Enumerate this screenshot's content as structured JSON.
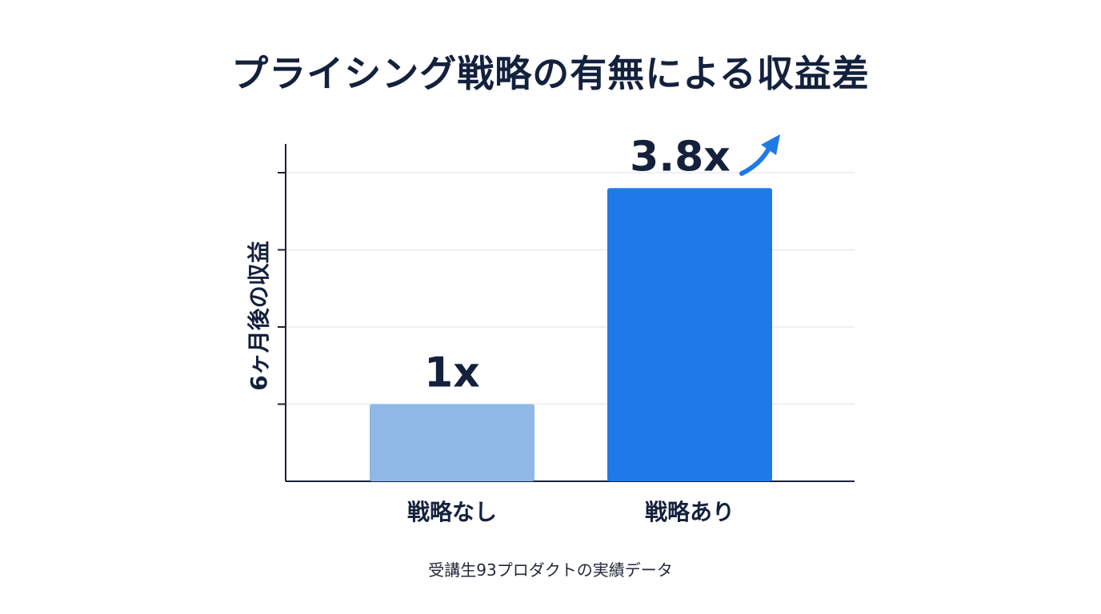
{
  "chart_data": {
    "type": "bar",
    "title": "プライシング戦略の有無による収益差",
    "ylabel": "6ヶ月後の収益",
    "xlabel": "",
    "categories": [
      "戦略なし",
      "戦略あり"
    ],
    "values": [
      1,
      3.8
    ],
    "data_labels": [
      "1x",
      "3.8x"
    ],
    "ylim": [
      0,
      4
    ],
    "grid": true,
    "footnote": "受講生93プロダクトの実績データ",
    "colors": {
      "bar_without_strategy": "#8fb8e6",
      "bar_with_strategy": "#1f7ae8",
      "arrow": "#1f7ae8",
      "text": "#14213d",
      "axis": "#1b2236",
      "grid": "#e2e6ee"
    },
    "annotation_icon": "trend-up-arrow-icon"
  }
}
